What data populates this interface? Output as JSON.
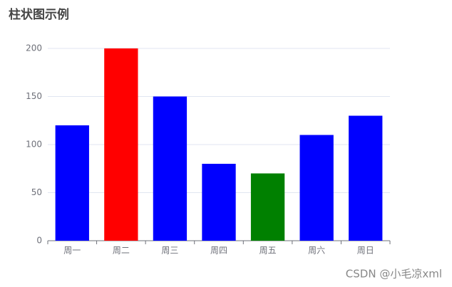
{
  "chart_data": {
    "type": "bar",
    "title": "柱状图示例",
    "categories": [
      "周一",
      "周二",
      "周三",
      "周四",
      "周五",
      "周六",
      "周日"
    ],
    "values": [
      120,
      200,
      150,
      80,
      70,
      110,
      130
    ],
    "colors": [
      "#0000ff",
      "#ff0000",
      "#0000ff",
      "#0000ff",
      "#008000",
      "#0000ff",
      "#0000ff"
    ],
    "ylim": [
      0,
      200
    ],
    "yticks": [
      0,
      50,
      100,
      150,
      200
    ],
    "grid": true
  },
  "watermark": "CSDN @小毛凉xml"
}
